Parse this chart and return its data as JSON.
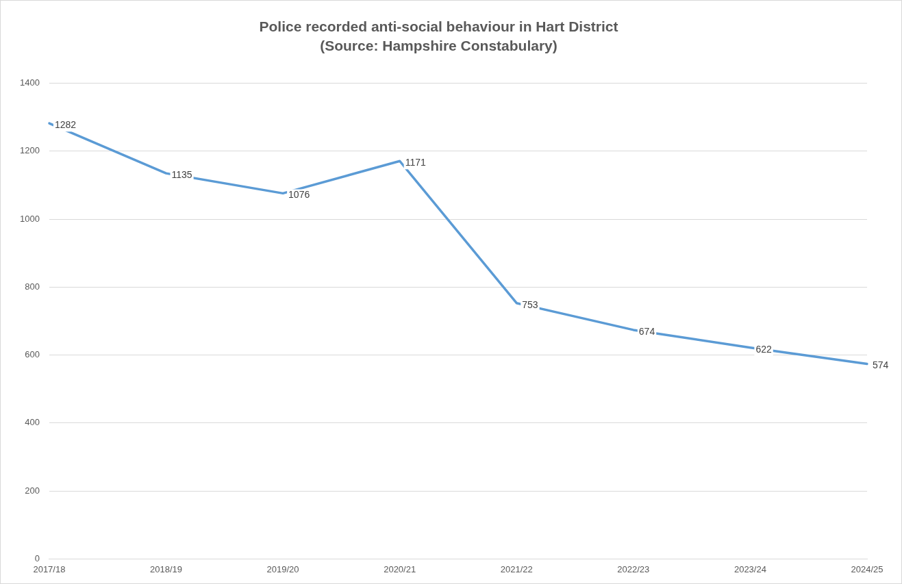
{
  "chart_data": {
    "type": "line",
    "title": "Police recorded anti-social behaviour in Hart District\n(Source: Hampshire Constabulary)",
    "categories": [
      "2017/18",
      "2018/19",
      "2019/20",
      "2020/21",
      "2021/22",
      "2022/23",
      "2023/24",
      "2024/25"
    ],
    "series": [
      {
        "color": "#5b9bd5",
        "values": [
          1282,
          1135,
          1076,
          1171,
          753,
          674,
          622,
          574
        ]
      }
    ],
    "ylim": [
      0,
      1400
    ],
    "yticks": [
      0,
      200,
      400,
      600,
      800,
      1000,
      1200,
      1400
    ],
    "grid": "y",
    "legend": false,
    "marker": "none",
    "line_style": "solid",
    "data_labels": true
  }
}
